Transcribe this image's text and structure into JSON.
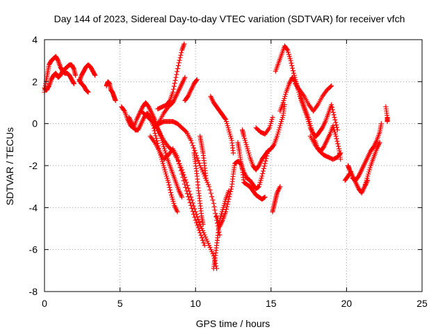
{
  "chart_data": {
    "type": "scatter",
    "title": "Day 144 of 2023, Sidereal Day-to-day VTEC variation (SDTVAR) for receiver vfch",
    "xlabel": "GPS time / hours",
    "ylabel": "SDTVAR / TECUs",
    "xlim": [
      0,
      25
    ],
    "ylim": [
      -8,
      4
    ],
    "xticks": [
      0,
      5,
      10,
      15,
      20,
      25
    ],
    "yticks": [
      -8,
      -6,
      -4,
      -2,
      0,
      2,
      4
    ],
    "grid": true,
    "marker": "+",
    "color": "#ff0000",
    "segments": [
      [
        [
          0.0,
          1.5
        ],
        [
          0.1,
          2.0
        ],
        [
          0.2,
          2.4
        ],
        [
          0.3,
          2.8
        ],
        [
          0.45,
          3.0
        ],
        [
          0.6,
          3.1
        ],
        [
          0.75,
          3.2
        ],
        [
          0.9,
          3.0
        ],
        [
          1.05,
          2.7
        ],
        [
          1.2,
          2.5
        ],
        [
          1.35,
          2.4
        ],
        [
          1.5,
          2.4
        ],
        [
          1.65,
          2.3
        ],
        [
          1.8,
          2.1
        ],
        [
          1.95,
          1.9
        ]
      ],
      [
        [
          0.0,
          1.7
        ],
        [
          0.15,
          1.6
        ],
        [
          0.3,
          1.8
        ],
        [
          0.45,
          2.1
        ],
        [
          0.6,
          2.3
        ],
        [
          0.75,
          2.4
        ],
        [
          0.9,
          2.2
        ],
        [
          1.05,
          2.3
        ],
        [
          1.2,
          2.5
        ],
        [
          1.35,
          2.6
        ],
        [
          1.5,
          2.7
        ],
        [
          1.65,
          2.8
        ],
        [
          1.8,
          2.8
        ],
        [
          1.95,
          2.6
        ],
        [
          2.05,
          2.3
        ]
      ],
      [
        [
          2.3,
          2.0
        ],
        [
          2.45,
          2.3
        ],
        [
          2.6,
          2.5
        ],
        [
          2.75,
          2.7
        ],
        [
          2.9,
          2.8
        ],
        [
          3.05,
          2.7
        ],
        [
          3.2,
          2.5
        ],
        [
          3.35,
          2.3
        ]
      ],
      [
        [
          2.3,
          2.1
        ],
        [
          2.45,
          1.9
        ],
        [
          2.6,
          1.8
        ],
        [
          2.75,
          1.6
        ],
        [
          2.9,
          1.5
        ]
      ],
      [
        [
          4.1,
          1.8
        ],
        [
          4.2,
          2.0
        ],
        [
          4.3,
          1.9
        ],
        [
          4.4,
          1.6
        ],
        [
          4.5,
          1.5
        ],
        [
          4.6,
          1.3
        ],
        [
          4.7,
          1.1
        ]
      ],
      [
        [
          5.1,
          0.8
        ],
        [
          5.3,
          0.6
        ],
        [
          5.5,
          0.2
        ],
        [
          5.7,
          -0.1
        ],
        [
          5.9,
          -0.2
        ],
        [
          6.1,
          0.2
        ],
        [
          6.3,
          0.5
        ],
        [
          6.5,
          0.8
        ],
        [
          6.7,
          1.0
        ],
        [
          6.9,
          0.8
        ],
        [
          7.1,
          0.5
        ],
        [
          7.3,
          0.2
        ],
        [
          7.5,
          -0.2
        ],
        [
          7.7,
          -0.6
        ],
        [
          7.9,
          -1.1
        ],
        [
          8.1,
          -1.6
        ],
        [
          8.3,
          -2.0
        ],
        [
          8.5,
          -2.4
        ],
        [
          8.7,
          -2.8
        ],
        [
          8.9,
          -3.2
        ],
        [
          9.1,
          -3.5
        ]
      ],
      [
        [
          5.6,
          0.3
        ],
        [
          5.8,
          0.0
        ],
        [
          6.0,
          -0.3
        ],
        [
          6.2,
          -0.3
        ],
        [
          6.4,
          0.0
        ],
        [
          6.6,
          0.3
        ],
        [
          6.8,
          0.5
        ],
        [
          7.0,
          0.3
        ],
        [
          7.2,
          -0.1
        ],
        [
          7.4,
          -0.7
        ],
        [
          7.6,
          -1.3
        ],
        [
          7.8,
          -1.8
        ],
        [
          8.0,
          -2.3
        ],
        [
          8.2,
          -2.8
        ],
        [
          8.4,
          -3.4
        ],
        [
          8.6,
          -3.9
        ],
        [
          8.8,
          -4.2
        ]
      ],
      [
        [
          6.4,
          0.6
        ],
        [
          6.7,
          0.4
        ],
        [
          7.0,
          0.2
        ],
        [
          7.3,
          0.0
        ],
        [
          7.6,
          -0.4
        ],
        [
          7.9,
          -0.8
        ],
        [
          8.2,
          -1.1
        ],
        [
          8.5,
          -1.3
        ],
        [
          8.8,
          -1.7
        ],
        [
          9.1,
          -2.2
        ],
        [
          9.4,
          -2.8
        ],
        [
          9.7,
          -3.5
        ],
        [
          10.0,
          -4.2
        ],
        [
          10.3,
          -4.8
        ],
        [
          10.6,
          -5.3
        ],
        [
          10.9,
          -5.8
        ],
        [
          11.2,
          -6.3
        ],
        [
          11.4,
          -6.9
        ]
      ],
      [
        [
          7.0,
          -0.6
        ],
        [
          7.3,
          -0.9
        ],
        [
          7.6,
          -1.3
        ],
        [
          7.9,
          -1.7
        ],
        [
          8.2,
          -1.5
        ],
        [
          8.5,
          -1.2
        ],
        [
          8.8,
          -1.6
        ],
        [
          9.1,
          -2.4
        ],
        [
          9.4,
          -3.2
        ],
        [
          9.7,
          -3.9
        ],
        [
          10.0,
          -4.6
        ],
        [
          10.3,
          -5.2
        ],
        [
          10.6,
          -5.8
        ]
      ],
      [
        [
          7.5,
          0.7
        ],
        [
          7.8,
          0.8
        ],
        [
          8.1,
          0.9
        ],
        [
          8.3,
          1.1
        ],
        [
          8.5,
          1.5
        ],
        [
          8.7,
          2.2
        ],
        [
          8.9,
          2.9
        ],
        [
          9.1,
          3.5
        ],
        [
          9.25,
          3.8
        ]
      ],
      [
        [
          7.3,
          -0.2
        ],
        [
          7.6,
          0.1
        ],
        [
          7.9,
          0.5
        ],
        [
          8.2,
          0.8
        ],
        [
          8.5,
          1.0
        ],
        [
          8.7,
          1.3
        ],
        [
          8.9,
          1.6
        ],
        [
          9.1,
          1.9
        ],
        [
          9.3,
          2.2
        ]
      ],
      [
        [
          7.6,
          0.0
        ],
        [
          7.9,
          0.1
        ],
        [
          8.2,
          0.1
        ],
        [
          8.5,
          0.1
        ],
        [
          8.8,
          0.0
        ],
        [
          9.1,
          -0.2
        ],
        [
          9.4,
          -0.4
        ],
        [
          9.7,
          -0.8
        ],
        [
          10.0,
          -1.4
        ],
        [
          10.3,
          -2.0
        ],
        [
          10.6,
          -2.5
        ],
        [
          10.9,
          -3.0
        ],
        [
          11.2,
          -3.8
        ],
        [
          11.4,
          -4.6
        ],
        [
          11.6,
          -5.3
        ]
      ],
      [
        [
          9.3,
          1.1
        ],
        [
          9.5,
          1.3
        ],
        [
          9.7,
          1.6
        ],
        [
          9.9,
          1.9
        ],
        [
          10.1,
          2.1
        ]
      ],
      [
        [
          9.9,
          -1.4
        ],
        [
          10.0,
          -1.9
        ],
        [
          10.1,
          -2.5
        ],
        [
          10.2,
          -3.2
        ],
        [
          10.3,
          -3.8
        ],
        [
          10.4,
          -4.4
        ],
        [
          10.5,
          -4.8
        ]
      ],
      [
        [
          10.3,
          -0.6
        ],
        [
          10.4,
          -1.0
        ],
        [
          10.5,
          -1.4
        ],
        [
          10.6,
          -2.0
        ],
        [
          10.7,
          -2.6
        ]
      ],
      [
        [
          11.0,
          1.3
        ],
        [
          11.2,
          1.0
        ],
        [
          11.4,
          0.8
        ],
        [
          11.6,
          0.6
        ],
        [
          11.8,
          0.4
        ],
        [
          12.0,
          0.2
        ],
        [
          12.2,
          -0.3
        ],
        [
          12.4,
          -0.8
        ],
        [
          12.5,
          -1.4
        ]
      ],
      [
        [
          11.4,
          -4.4
        ],
        [
          11.6,
          -4.9
        ],
        [
          11.8,
          -4.6
        ],
        [
          12.0,
          -4.2
        ],
        [
          12.2,
          -3.6
        ],
        [
          12.4,
          -3.0
        ],
        [
          12.5,
          -2.4
        ],
        [
          12.6,
          -1.9
        ],
        [
          12.8,
          -1.8
        ],
        [
          13.0,
          -1.9
        ],
        [
          13.2,
          -2.3
        ],
        [
          13.4,
          -2.6
        ],
        [
          13.6,
          -2.7
        ],
        [
          13.8,
          -2.9
        ],
        [
          14.0,
          -3.1
        ],
        [
          14.2,
          -3.0
        ],
        [
          14.4,
          -2.5
        ],
        [
          14.6,
          -1.9
        ],
        [
          14.8,
          -1.3
        ]
      ],
      [
        [
          11.2,
          -6.9
        ],
        [
          11.3,
          -6.4
        ],
        [
          11.4,
          -5.8
        ],
        [
          11.5,
          -5.2
        ],
        [
          11.6,
          -4.6
        ],
        [
          11.8,
          -4.1
        ],
        [
          12.0,
          -3.6
        ],
        [
          12.2,
          -3.2
        ]
      ],
      [
        [
          12.8,
          -0.9
        ],
        [
          12.9,
          -1.3
        ],
        [
          13.0,
          -1.8
        ],
        [
          13.1,
          -2.2
        ],
        [
          13.2,
          -2.8
        ],
        [
          13.4,
          -2.9
        ],
        [
          13.6,
          -3.0
        ],
        [
          13.8,
          -3.2
        ],
        [
          14.0,
          -3.4
        ],
        [
          14.2,
          -3.5
        ],
        [
          14.4,
          -3.6
        ],
        [
          14.6,
          -3.5
        ]
      ],
      [
        [
          13.1,
          -0.3
        ],
        [
          13.2,
          -0.6
        ],
        [
          13.4,
          -1.1
        ],
        [
          13.6,
          -1.6
        ],
        [
          13.8,
          -2.0
        ],
        [
          14.0,
          -2.2
        ],
        [
          14.2,
          -2.0
        ],
        [
          14.4,
          -1.7
        ],
        [
          14.6,
          -1.5
        ],
        [
          14.8,
          -1.3
        ],
        [
          15.0,
          -1.2
        ],
        [
          15.2,
          -1.0
        ],
        [
          15.4,
          -0.6
        ],
        [
          15.6,
          -0.1
        ],
        [
          15.8,
          0.4
        ],
        [
          15.9,
          0.9
        ]
      ],
      [
        [
          14.0,
          -0.2
        ],
        [
          14.3,
          -0.4
        ],
        [
          14.6,
          -0.5
        ],
        [
          14.9,
          -0.2
        ],
        [
          15.1,
          0.3
        ]
      ],
      [
        [
          15.1,
          -4.2
        ],
        [
          15.2,
          -3.9
        ],
        [
          15.3,
          -3.6
        ],
        [
          15.4,
          -3.3
        ],
        [
          15.6,
          -3.0
        ]
      ],
      [
        [
          15.3,
          2.5
        ],
        [
          15.5,
          2.9
        ],
        [
          15.7,
          3.3
        ],
        [
          15.9,
          3.7
        ],
        [
          16.1,
          3.5
        ],
        [
          16.3,
          3.0
        ],
        [
          16.5,
          2.4
        ],
        [
          16.7,
          1.9
        ],
        [
          16.9,
          1.4
        ],
        [
          17.1,
          1.0
        ],
        [
          17.3,
          0.6
        ],
        [
          17.5,
          0.2
        ],
        [
          17.7,
          -0.3
        ],
        [
          17.9,
          -0.8
        ],
        [
          18.1,
          -1.2
        ],
        [
          18.3,
          -1.3
        ],
        [
          18.5,
          -1.1
        ],
        [
          18.7,
          -0.8
        ],
        [
          18.9,
          -0.5
        ],
        [
          19.1,
          -0.1
        ],
        [
          19.3,
          -0.6
        ],
        [
          19.5,
          -1.2
        ],
        [
          19.6,
          -1.7
        ]
      ],
      [
        [
          15.6,
          0.6
        ],
        [
          15.8,
          1.0
        ],
        [
          16.0,
          1.5
        ],
        [
          16.2,
          1.9
        ],
        [
          16.4,
          2.2
        ],
        [
          16.6,
          2.0
        ],
        [
          16.8,
          1.6
        ],
        [
          17.0,
          1.1
        ],
        [
          17.2,
          0.7
        ],
        [
          17.4,
          0.3
        ],
        [
          17.6,
          -0.2
        ],
        [
          17.8,
          -0.5
        ],
        [
          18.0,
          -0.6
        ],
        [
          18.2,
          -0.4
        ],
        [
          18.4,
          -0.2
        ],
        [
          18.6,
          0.1
        ],
        [
          18.8,
          0.5
        ],
        [
          19.0,
          0.9
        ],
        [
          19.2,
          0.3
        ],
        [
          19.4,
          -0.3
        ]
      ],
      [
        [
          16.6,
          1.9
        ],
        [
          16.9,
          1.6
        ],
        [
          17.2,
          1.3
        ],
        [
          17.5,
          0.9
        ],
        [
          17.8,
          0.6
        ],
        [
          18.1,
          0.9
        ],
        [
          18.4,
          1.3
        ],
        [
          18.7,
          1.6
        ],
        [
          19.0,
          1.8
        ]
      ],
      [
        [
          17.6,
          -0.6
        ],
        [
          17.9,
          -1.0
        ],
        [
          18.2,
          -1.3
        ],
        [
          18.5,
          -1.5
        ],
        [
          18.8,
          -1.6
        ],
        [
          19.1,
          -1.7
        ],
        [
          19.4,
          -1.6
        ],
        [
          19.6,
          -1.4
        ]
      ],
      [
        [
          20.1,
          -2.0
        ],
        [
          20.2,
          -2.2
        ],
        [
          20.4,
          -2.5
        ],
        [
          20.6,
          -2.8
        ],
        [
          20.8,
          -3.1
        ],
        [
          21.0,
          -3.3
        ],
        [
          21.2,
          -3.0
        ],
        [
          21.4,
          -2.7
        ]
      ],
      [
        [
          20.4,
          -2.6
        ],
        [
          20.6,
          -2.7
        ],
        [
          20.8,
          -2.5
        ],
        [
          21.0,
          -2.2
        ],
        [
          21.2,
          -1.9
        ],
        [
          21.4,
          -1.6
        ],
        [
          21.6,
          -1.3
        ],
        [
          21.8,
          -1.1
        ],
        [
          22.0,
          -0.8
        ],
        [
          22.2,
          -0.4
        ],
        [
          22.3,
          0.0
        ]
      ],
      [
        [
          21.2,
          -3.0
        ],
        [
          21.4,
          -2.5
        ],
        [
          21.6,
          -2.0
        ],
        [
          21.8,
          -1.6
        ],
        [
          22.0,
          -1.2
        ],
        [
          22.2,
          -0.9
        ]
      ],
      [
        [
          19.9,
          -2.7
        ],
        [
          20.1,
          -2.5
        ],
        [
          20.3,
          -2.3
        ]
      ],
      [
        [
          22.6,
          0.8
        ],
        [
          22.7,
          0.3
        ],
        [
          22.7,
          0.1
        ]
      ]
    ]
  }
}
